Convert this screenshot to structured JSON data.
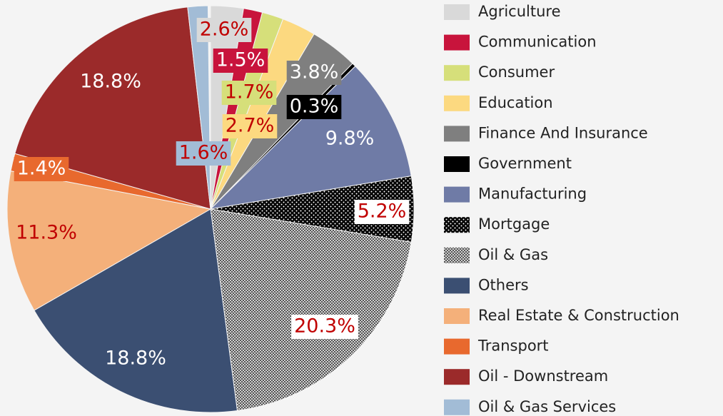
{
  "chart_data": {
    "type": "pie",
    "categories": [
      "Agriculture",
      "Communication",
      "Consumer",
      "Education",
      "Finance And Insurance",
      "Government",
      "Manufacturing",
      "Mortgage",
      "Oil & Gas",
      "Others",
      "Real Estate & Construction",
      "Transport",
      "Oil - Downstream",
      "Oil & Gas Services"
    ],
    "values": [
      2.6,
      1.5,
      1.7,
      2.7,
      3.8,
      0.3,
      9.8,
      5.2,
      20.3,
      18.8,
      11.3,
      1.4,
      18.8,
      1.6
    ],
    "value_labels": [
      "2.6%",
      "1.5%",
      "1.7%",
      "2.7%",
      "3.8%",
      "0.3%",
      "9.8%",
      "5.2%",
      "20.3%",
      "18.8%",
      "11.3%",
      "1.4%",
      "18.8%",
      "1.6%"
    ],
    "colors": [
      "#d9d9d9",
      "#c8143c",
      "#d6df7a",
      "#fcd980",
      "#7f7f7f",
      "#000000",
      "#6f7ba6",
      "#000000",
      "#a6a6a6",
      "#3b4f72",
      "#f4b07a",
      "#e8692e",
      "#9b2a2a",
      "#a2bcd6"
    ],
    "patterns": [
      null,
      null,
      null,
      null,
      null,
      null,
      null,
      "dots",
      "checker",
      null,
      null,
      null,
      null,
      null
    ],
    "label_colors": [
      "#c00000",
      "#ffffff",
      "#c00000",
      "#c00000",
      "#ffffff",
      "#ffffff",
      "#ffffff",
      "#c00000",
      "#c00000",
      "#ffffff",
      "#c00000",
      "#ffffff",
      "#ffffff",
      "#c00000"
    ],
    "label_backgrounds": [
      "#d9d9d9",
      "#c8143c",
      "#d6df7a",
      "#fcd980",
      "#7f7f7f",
      "#000000",
      null,
      "#ffffff",
      "#ffffff",
      null,
      null,
      "#e8692e",
      null,
      "#a2bcd6"
    ],
    "legend": "right"
  }
}
